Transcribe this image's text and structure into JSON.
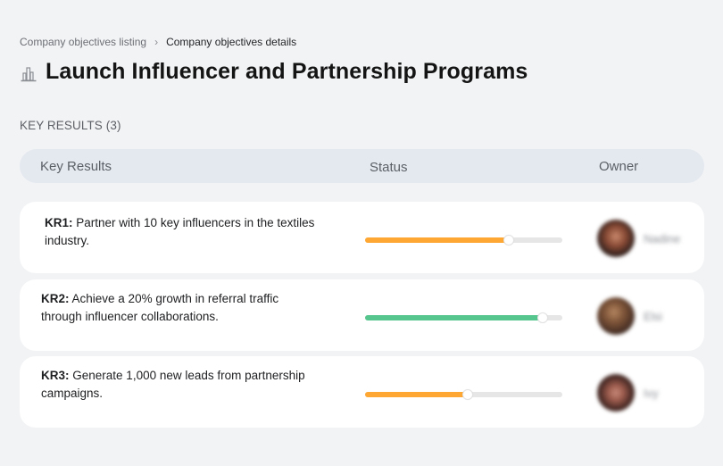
{
  "breadcrumb": {
    "items": [
      {
        "label": "Company objectives listing"
      },
      {
        "label": "Company objectives details"
      }
    ],
    "separator": "›"
  },
  "header": {
    "icon": "bar-chart-icon",
    "title": "Launch Influencer and Partnership Programs"
  },
  "key_results_section": {
    "label": "KEY RESULTS (3)",
    "count": 3,
    "columns": {
      "key_results": "Key Results",
      "status": "Status",
      "owner": "Owner"
    },
    "rows": [
      {
        "code": "KR1:",
        "description": " Partner with 10 key influencers in the textiles industry.",
        "progress_percent": 73,
        "progress_color": "#FFA733",
        "owner_name": "Nadine"
      },
      {
        "code": "KR2:",
        "description": " Achieve a 20% growth in referral traffic through influencer collaborations.",
        "progress_percent": 90,
        "progress_color": "#57C58E",
        "owner_name": "Elsi"
      },
      {
        "code": "KR3:",
        "description": " Generate 1,000 new leads from partnership campaigns.",
        "progress_percent": 52,
        "progress_color": "#FFA733",
        "owner_name": "Ivy"
      }
    ]
  },
  "colors": {
    "background": "#f2f3f5",
    "header_bar": "#e4e9f0",
    "card": "#ffffff",
    "track": "#e6e6e6",
    "warning": "#FFA733",
    "success": "#57C58E"
  }
}
